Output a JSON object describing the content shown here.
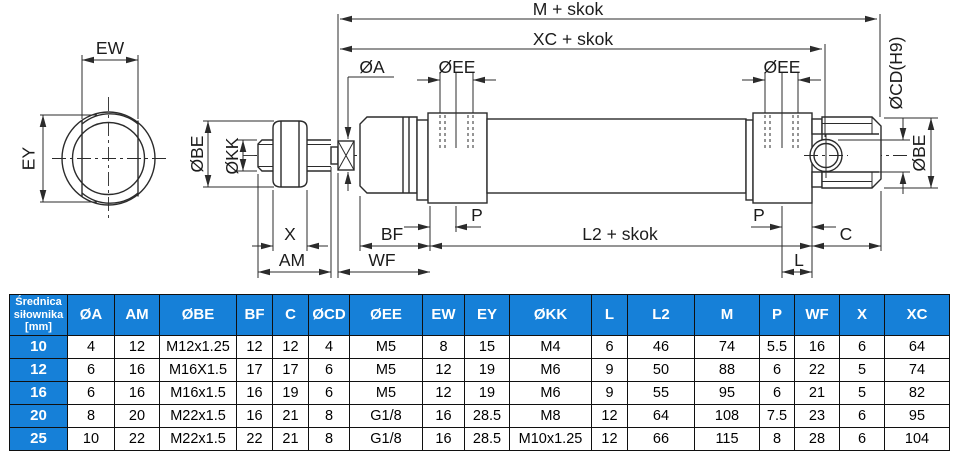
{
  "drawing": {
    "labels": {
      "m_skok": "M + skok",
      "xc_skok": "XC + skok",
      "l2_skok": "L2 + skok",
      "oa": "ØA",
      "oee": "ØEE",
      "ocd": "ØCD(H9)",
      "obe": "ØBE",
      "okk": "ØKK",
      "ew": "EW",
      "ey": "EY",
      "x": "X",
      "am": "AM",
      "bf": "BF",
      "wf": "WF",
      "p": "P",
      "l": "L",
      "c": "C"
    }
  },
  "table": {
    "header": [
      "Średnica siłownika [mm]",
      "ØA",
      "AM",
      "ØBE",
      "BF",
      "C",
      "ØCD",
      "ØEE",
      "EW",
      "EY",
      "ØKK",
      "L",
      "L2",
      "M",
      "P",
      "WF",
      "X",
      "XC"
    ],
    "rows": [
      [
        "10",
        "4",
        "12",
        "M12x1.25",
        "12",
        "12",
        "4",
        "M5",
        "8",
        "15",
        "M4",
        "6",
        "46",
        "74",
        "5.5",
        "16",
        "6",
        "64"
      ],
      [
        "12",
        "6",
        "16",
        "M16X1.5",
        "17",
        "17",
        "6",
        "M5",
        "12",
        "19",
        "M6",
        "9",
        "50",
        "88",
        "6",
        "22",
        "5",
        "74"
      ],
      [
        "16",
        "6",
        "16",
        "M16x1.5",
        "16",
        "19",
        "6",
        "M5",
        "12",
        "19",
        "M6",
        "9",
        "55",
        "95",
        "6",
        "21",
        "5",
        "82"
      ],
      [
        "20",
        "8",
        "20",
        "M22x1.5",
        "16",
        "21",
        "8",
        "G1/8",
        "16",
        "28.5",
        "M8",
        "12",
        "64",
        "108",
        "7.5",
        "23",
        "6",
        "95"
      ],
      [
        "25",
        "10",
        "22",
        "M22x1.5",
        "22",
        "21",
        "8",
        "G1/8",
        "16",
        "28.5",
        "M10x1.25",
        "12",
        "66",
        "115",
        "8",
        "28",
        "6",
        "104"
      ]
    ],
    "colors": {
      "header_bg": "#1680d8",
      "header_text": "#ffffff",
      "border": "#101010",
      "cell_bg": "#ffffff",
      "cell_text": "#000000"
    }
  }
}
